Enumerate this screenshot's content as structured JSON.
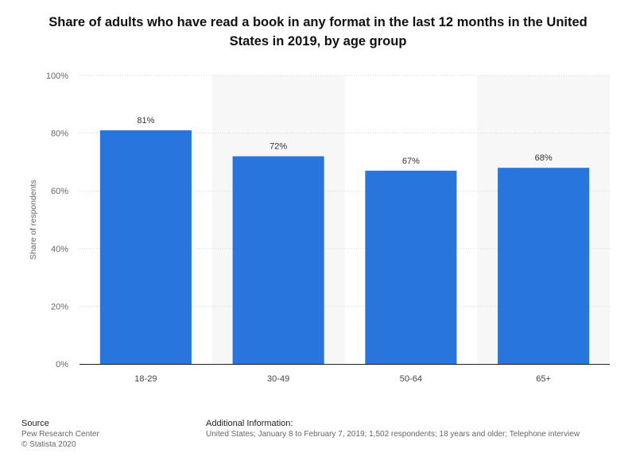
{
  "chart_data": {
    "type": "bar",
    "title": "Share of adults who have read a book in any format in the last 12 months in the United States in 2019, by age group",
    "categories": [
      "18-29",
      "30-49",
      "50-64",
      "65+"
    ],
    "values": [
      81,
      72,
      67,
      68
    ],
    "value_labels": [
      "81%",
      "72%",
      "67%",
      "68%"
    ],
    "ylabel": "Share of respondents",
    "xlabel": "",
    "ylim": [
      0,
      100
    ],
    "yticks": [
      0,
      20,
      40,
      60,
      80,
      100
    ],
    "ytick_labels": [
      "0%",
      "20%",
      "40%",
      "60%",
      "80%",
      "100%"
    ],
    "grid": true,
    "bar_color": "#2876dd"
  },
  "footer": {
    "source_heading": "Source",
    "source_name": "Pew Research Center",
    "copyright": "© Statista 2020",
    "info_heading": "Additional Information:",
    "info_text": "United States; January 8 to February 7, 2019; 1,502 respondents; 18 years and older; Telephone interview"
  }
}
